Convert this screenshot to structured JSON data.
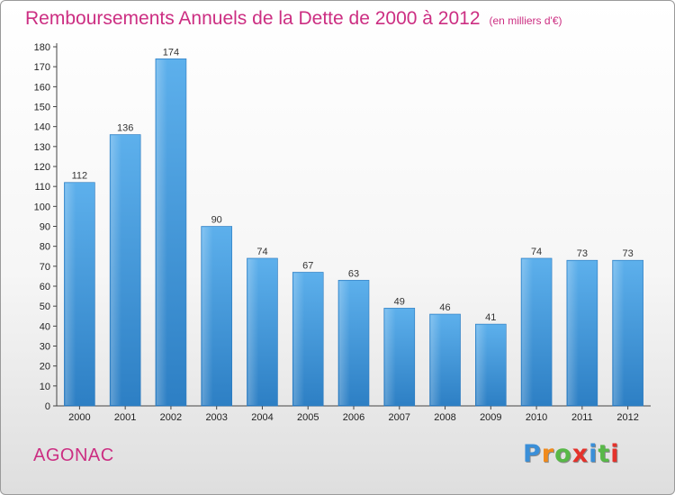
{
  "title": "Remboursements Annuels de la Dette de 2000 à 2012",
  "subtitle": "(en milliers d'€)",
  "commune": "AGONAC",
  "logo": {
    "letters": [
      "P",
      "r",
      "o",
      "x",
      "i",
      "t",
      "i"
    ],
    "colors": [
      "#3a8fd8",
      "#f08a1c",
      "#58b848",
      "#e4322b",
      "#3a8fd8",
      "#58b848",
      "#e4322b"
    ]
  },
  "chart_data": {
    "type": "bar",
    "categories": [
      "2000",
      "2001",
      "2002",
      "2003",
      "2004",
      "2005",
      "2006",
      "2007",
      "2008",
      "2009",
      "2010",
      "2011",
      "2012"
    ],
    "values": [
      112,
      136,
      174,
      90,
      74,
      67,
      63,
      49,
      46,
      41,
      74,
      73,
      73
    ],
    "title": "Remboursements Annuels de la Dette de 2000 à 2012",
    "ylabel": "",
    "xlabel": "",
    "ylim": [
      0,
      180
    ],
    "ytick_step": 10,
    "grid": false,
    "bar_color": "#3f97dd",
    "data_labels": true
  }
}
